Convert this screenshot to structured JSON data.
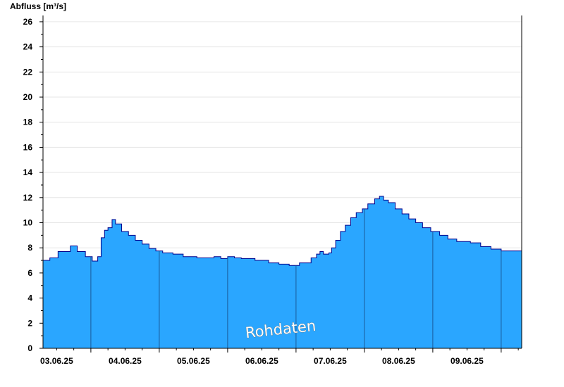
{
  "chart_data": {
    "type": "area",
    "ylabel": "Abfluss [m³/s]",
    "ylim": [
      0,
      26.5
    ],
    "yticks": [
      0,
      2,
      4,
      6,
      8,
      10,
      12,
      14,
      16,
      18,
      20,
      22,
      24,
      26
    ],
    "xlim": [
      2.3,
      9.3
    ],
    "day_boundaries": [
      3,
      4,
      5,
      6,
      7,
      8,
      9
    ],
    "xtick_labels": [
      {
        "x": 2.5,
        "label": "03.06.25"
      },
      {
        "x": 3.5,
        "label": "04.06.25"
      },
      {
        "x": 4.5,
        "label": "05.06.25"
      },
      {
        "x": 5.5,
        "label": "06.06.25"
      },
      {
        "x": 6.5,
        "label": "07.06.25"
      },
      {
        "x": 7.5,
        "label": "08.06.25"
      },
      {
        "x": 8.5,
        "label": "09.06.25"
      }
    ],
    "grid": true,
    "fill_color": "#2aa6ff",
    "line_color": "#00008b",
    "watermark": "Rohdaten",
    "series": [
      {
        "points": [
          [
            2.3,
            7.0
          ],
          [
            2.4,
            7.2
          ],
          [
            2.52,
            7.7
          ],
          [
            2.7,
            8.15
          ],
          [
            2.8,
            7.7
          ],
          [
            2.92,
            7.3
          ],
          [
            3.02,
            6.95
          ],
          [
            3.1,
            7.3
          ],
          [
            3.15,
            8.8
          ],
          [
            3.2,
            9.4
          ],
          [
            3.25,
            9.6
          ],
          [
            3.31,
            10.25
          ],
          [
            3.36,
            9.9
          ],
          [
            3.45,
            9.3
          ],
          [
            3.55,
            9.0
          ],
          [
            3.65,
            8.6
          ],
          [
            3.75,
            8.3
          ],
          [
            3.85,
            7.95
          ],
          [
            3.95,
            7.75
          ],
          [
            4.05,
            7.6
          ],
          [
            4.2,
            7.5
          ],
          [
            4.35,
            7.3
          ],
          [
            4.55,
            7.2
          ],
          [
            4.8,
            7.3
          ],
          [
            4.9,
            7.15
          ],
          [
            5.0,
            7.3
          ],
          [
            5.1,
            7.2
          ],
          [
            5.2,
            7.15
          ],
          [
            5.4,
            7.0
          ],
          [
            5.6,
            6.8
          ],
          [
            5.75,
            6.7
          ],
          [
            5.9,
            6.6
          ],
          [
            6.0,
            6.6
          ],
          [
            6.05,
            6.8
          ],
          [
            6.15,
            6.8
          ],
          [
            6.22,
            7.2
          ],
          [
            6.3,
            7.5
          ],
          [
            6.35,
            7.7
          ],
          [
            6.4,
            7.5
          ],
          [
            6.48,
            7.6
          ],
          [
            6.52,
            8.0
          ],
          [
            6.58,
            8.6
          ],
          [
            6.65,
            9.3
          ],
          [
            6.72,
            9.8
          ],
          [
            6.8,
            10.4
          ],
          [
            6.88,
            10.8
          ],
          [
            6.97,
            11.1
          ],
          [
            7.05,
            11.5
          ],
          [
            7.15,
            11.9
          ],
          [
            7.22,
            12.1
          ],
          [
            7.28,
            11.8
          ],
          [
            7.35,
            11.6
          ],
          [
            7.45,
            11.1
          ],
          [
            7.55,
            10.7
          ],
          [
            7.65,
            10.3
          ],
          [
            7.75,
            10.0
          ],
          [
            7.85,
            9.6
          ],
          [
            7.97,
            9.3
          ],
          [
            8.1,
            9.0
          ],
          [
            8.22,
            8.7
          ],
          [
            8.35,
            8.5
          ],
          [
            8.55,
            8.4
          ],
          [
            8.7,
            8.1
          ],
          [
            8.85,
            7.9
          ],
          [
            9.0,
            7.75
          ],
          [
            9.3,
            7.7
          ]
        ]
      }
    ]
  }
}
